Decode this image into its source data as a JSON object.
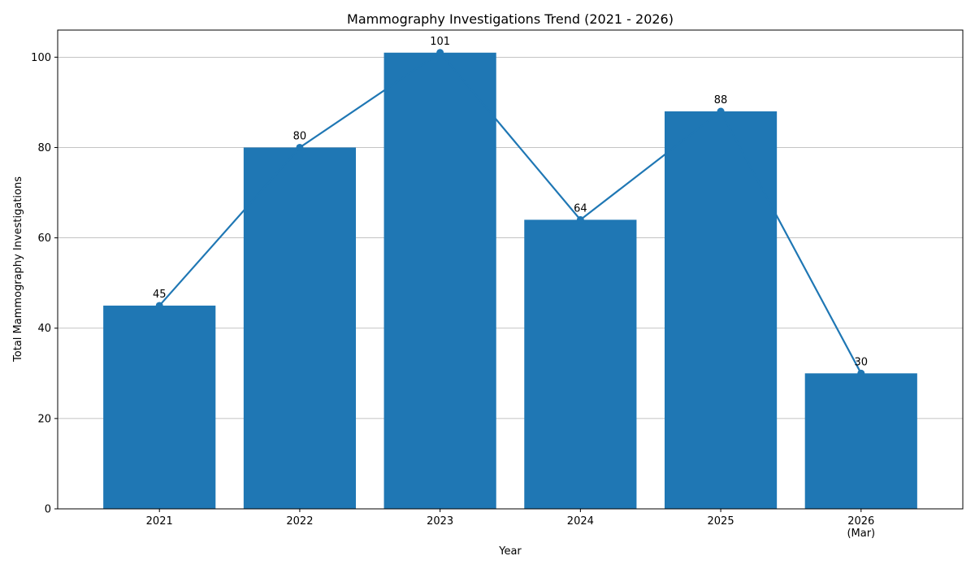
{
  "chart_data": {
    "type": "bar",
    "title": "Mammography Investigations Trend (2021 - 2026)",
    "xlabel": "Year",
    "ylabel": "Total Mammography Investigations",
    "categories": [
      [
        "2021"
      ],
      [
        "2022"
      ],
      [
        "2023"
      ],
      [
        "2024"
      ],
      [
        "2025"
      ],
      [
        "2026",
        "(Mar)"
      ]
    ],
    "values": [
      45,
      80,
      101,
      64,
      88,
      30
    ],
    "overlay_line": true,
    "ylim": [
      0,
      106
    ],
    "yticks": [
      0,
      20,
      40,
      60,
      80,
      100
    ],
    "grid": "horizontal",
    "legend": "none",
    "colors": {
      "bar": "#1f77b4",
      "line": "#1f77b4",
      "grid": "#b0b0b0"
    }
  }
}
